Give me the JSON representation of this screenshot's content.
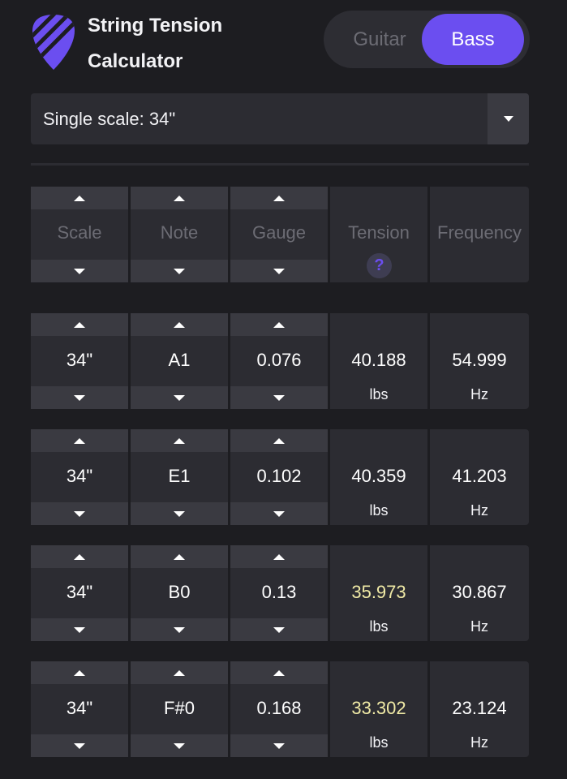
{
  "app": {
    "title_line1": "String Tension",
    "title_line2": "Calculator",
    "logo_icon": "guitar-pick-logo-icon",
    "accent_color": "#6b4ef0"
  },
  "instrument_toggle": {
    "options": [
      "Guitar",
      "Bass"
    ],
    "selected": "Bass"
  },
  "scale_select": {
    "value": "Single scale: 34\"",
    "icon": "chevron-down-icon"
  },
  "table": {
    "headers": [
      "Scale",
      "Note",
      "Gauge",
      "Tension",
      "Frequency"
    ],
    "help_label": "?",
    "rows": [
      {
        "scale": "34\"",
        "note": "A1",
        "gauge": "0.076",
        "tension": "40.188",
        "tension_unit": "lbs",
        "frequency": "54.999",
        "frequency_unit": "Hz",
        "tension_status": "normal"
      },
      {
        "scale": "34\"",
        "note": "E1",
        "gauge": "0.102",
        "tension": "40.359",
        "tension_unit": "lbs",
        "frequency": "41.203",
        "frequency_unit": "Hz",
        "tension_status": "normal"
      },
      {
        "scale": "34\"",
        "note": "B0",
        "gauge": "0.13",
        "tension": "35.973",
        "tension_unit": "lbs",
        "frequency": "30.867",
        "frequency_unit": "Hz",
        "tension_status": "low"
      },
      {
        "scale": "34\"",
        "note": "F#0",
        "gauge": "0.168",
        "tension": "33.302",
        "tension_unit": "lbs",
        "frequency": "23.124",
        "frequency_unit": "Hz",
        "tension_status": "low"
      }
    ]
  }
}
